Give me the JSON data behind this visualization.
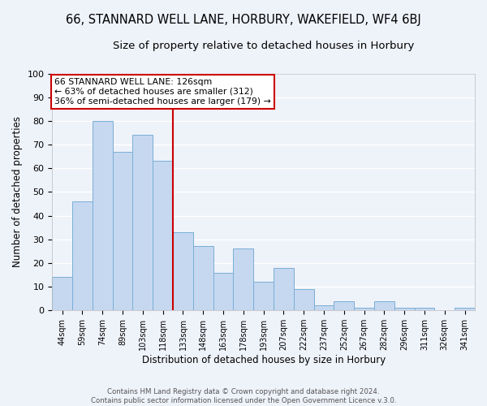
{
  "title": "66, STANNARD WELL LANE, HORBURY, WAKEFIELD, WF4 6BJ",
  "subtitle": "Size of property relative to detached houses in Horbury",
  "xlabel": "Distribution of detached houses by size in Horbury",
  "ylabel": "Number of detached properties",
  "categories": [
    "44sqm",
    "59sqm",
    "74sqm",
    "89sqm",
    "103sqm",
    "118sqm",
    "133sqm",
    "148sqm",
    "163sqm",
    "178sqm",
    "193sqm",
    "207sqm",
    "222sqm",
    "237sqm",
    "252sqm",
    "267sqm",
    "282sqm",
    "296sqm",
    "311sqm",
    "326sqm",
    "341sqm"
  ],
  "values": [
    14,
    46,
    80,
    67,
    74,
    63,
    33,
    27,
    16,
    26,
    12,
    18,
    9,
    2,
    4,
    1,
    4,
    1,
    1,
    0,
    1
  ],
  "bar_color": "#c5d8f0",
  "bar_edge_color": "#7aaed6",
  "bar_width": 1.0,
  "ylim": [
    0,
    100
  ],
  "yticks": [
    0,
    10,
    20,
    30,
    40,
    50,
    60,
    70,
    80,
    90,
    100
  ],
  "vline_color": "#cc0000",
  "annotation_title": "66 STANNARD WELL LANE: 126sqm",
  "annotation_line1": "← 63% of detached houses are smaller (312)",
  "annotation_line2": "36% of semi-detached houses are larger (179) →",
  "annotation_box_color": "#ffffff",
  "annotation_box_edge": "#cc0000",
  "footer1": "Contains HM Land Registry data © Crown copyright and database right 2024.",
  "footer2": "Contains public sector information licensed under the Open Government Licence v.3.0.",
  "background_color": "#eef2f9",
  "grid_color": "#ffffff",
  "title_fontsize": 10.5,
  "subtitle_fontsize": 9.5
}
